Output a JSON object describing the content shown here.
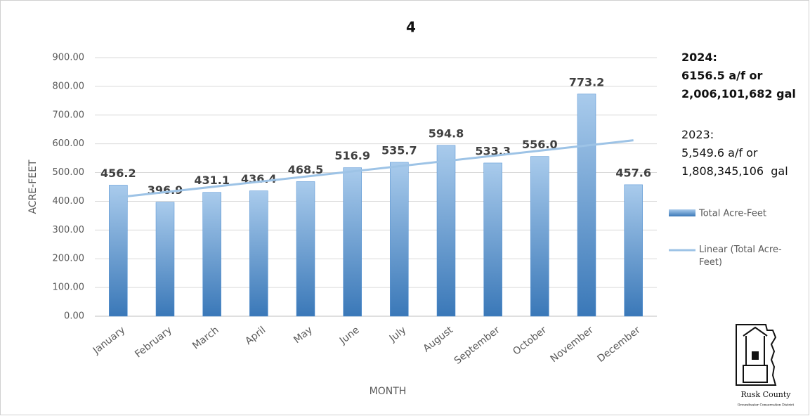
{
  "chart_data": {
    "type": "bar",
    "title": "4",
    "x_label": "MONTH",
    "y_label": "ACRE-FEET",
    "categories": [
      "January",
      "February",
      "March",
      "April",
      "May",
      "June",
      "July",
      "August",
      "September",
      "October",
      "November",
      "December"
    ],
    "series": [
      {
        "name": "Total Acre-Feet",
        "color": "#4a8bd0",
        "values": [
          456.2,
          396.9,
          431.1,
          436.4,
          468.5,
          516.9,
          535.7,
          594.8,
          533.3,
          556.0,
          773.2,
          457.6
        ],
        "value_labels": [
          "456.2",
          "396.9",
          "431.1",
          "436.4",
          "468.5",
          "516.9",
          "535.7",
          "594.8",
          "533.3",
          "556.0",
          "773.2",
          "457.6"
        ]
      }
    ],
    "trendline": {
      "name": "Linear (Total Acre-Feet)",
      "color": "#9dc3e6"
    },
    "ylim": [
      0,
      900
    ],
    "yticks": [
      {
        "value": 0,
        "label": "0.00"
      },
      {
        "value": 100,
        "label": "100.00"
      },
      {
        "value": 200,
        "label": "200.00"
      },
      {
        "value": 300,
        "label": "300.00"
      },
      {
        "value": 400,
        "label": "400.00"
      },
      {
        "value": 500,
        "label": "500.00"
      },
      {
        "value": 600,
        "label": "600.00"
      },
      {
        "value": 700,
        "label": "700.00"
      },
      {
        "value": 800,
        "label": "800.00"
      },
      {
        "value": 900,
        "label": "900.00"
      }
    ],
    "grid": true,
    "annotations": [
      "2024:",
      "6156.5 a/f or",
      "2,006,101,682 gal",
      "2023:",
      "5,549.6 a/f or",
      "1,808,345,106  gal"
    ],
    "logo": {
      "name": "Rusk County",
      "subtitle": "Groundwater Conservation District"
    }
  }
}
